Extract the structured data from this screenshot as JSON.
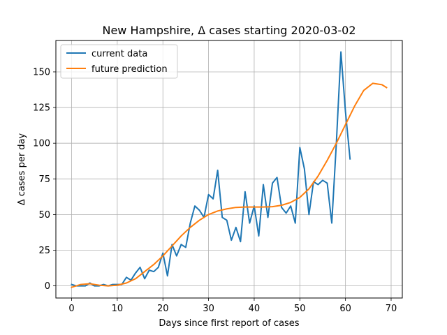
{
  "chart_data": {
    "type": "line",
    "title": "New Hampshire, Δ cases starting 2020-03-02",
    "xlabel": "Days since first report of cases",
    "ylabel": "Δ cases per day",
    "xlim": [
      -3.45,
      72.45
    ],
    "ylim": [
      -8.5,
      172
    ],
    "xticks": [
      0,
      10,
      20,
      30,
      40,
      50,
      60,
      70
    ],
    "yticks": [
      0,
      25,
      50,
      75,
      100,
      125,
      150
    ],
    "grid": true,
    "legend_position": "upper-left",
    "series": [
      {
        "name": "current data",
        "color": "#1f77b4",
        "x": [
          0,
          1,
          2,
          3,
          4,
          5,
          6,
          7,
          8,
          9,
          10,
          11,
          12,
          13,
          14,
          15,
          16,
          17,
          18,
          19,
          20,
          21,
          22,
          23,
          24,
          25,
          26,
          27,
          28,
          29,
          30,
          31,
          32,
          33,
          34,
          35,
          36,
          37,
          38,
          39,
          40,
          41,
          42,
          43,
          44,
          45,
          46,
          47,
          48,
          49,
          50,
          51,
          52,
          53,
          54,
          55,
          56,
          57,
          58,
          59,
          60,
          61
        ],
        "values": [
          1,
          0,
          0,
          0,
          2,
          0,
          0,
          1,
          0,
          1,
          1,
          1,
          6,
          4,
          9,
          13,
          5,
          11,
          10,
          13,
          23,
          7,
          29,
          21,
          29,
          27,
          44,
          56,
          53,
          48,
          64,
          61,
          81,
          48,
          46,
          32,
          41,
          31,
          66,
          44,
          56,
          35,
          71,
          48,
          72,
          76,
          55,
          51,
          56,
          44,
          97,
          82,
          50,
          73,
          71,
          74,
          72,
          44,
          100,
          164,
          122,
          89
        ]
      },
      {
        "name": "future prediction",
        "color": "#ff7f0e",
        "x": [
          0,
          2,
          4,
          6,
          8,
          10,
          12,
          14,
          16,
          18,
          20,
          22,
          24,
          26,
          28,
          30,
          32,
          34,
          36,
          38,
          40,
          42,
          44,
          46,
          48,
          50,
          52,
          54,
          56,
          58,
          60,
          62,
          64,
          66,
          68,
          69
        ],
        "values": [
          -1,
          1,
          1.5,
          0.5,
          0,
          0.5,
          2,
          5,
          10,
          15,
          21,
          28,
          35,
          41,
          46,
          50,
          52.5,
          54,
          55,
          55.3,
          55.3,
          55.3,
          55.5,
          56.5,
          58.5,
          62,
          68,
          77,
          88,
          100,
          113,
          126,
          137,
          142,
          141,
          139
        ]
      }
    ]
  }
}
